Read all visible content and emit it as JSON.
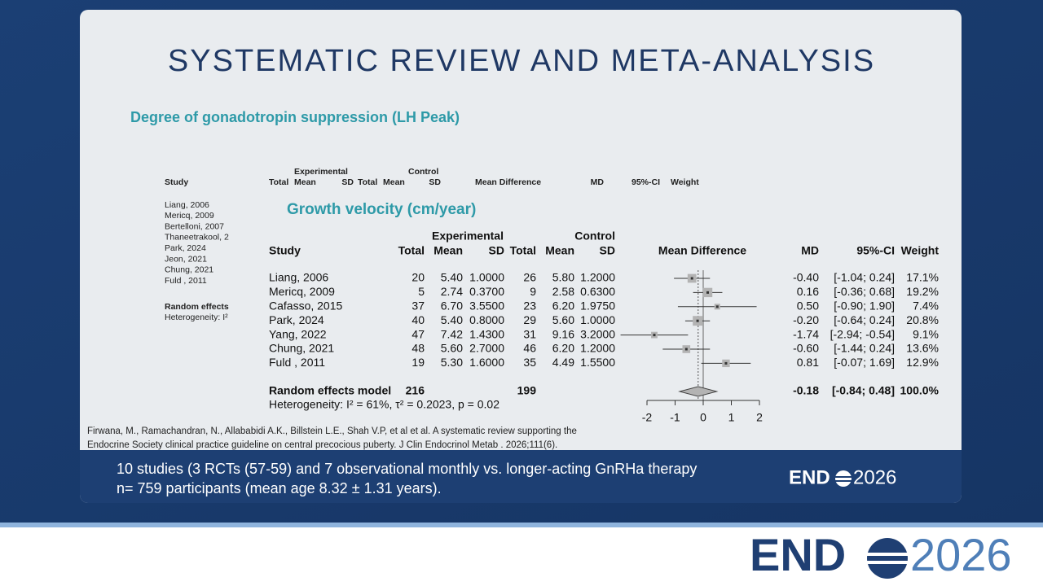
{
  "slide": {
    "title": "SYSTEMATIC REVIEW AND META-ANALYSIS",
    "lh_heading": "Degree of gonadotropin suppression (LH Peak)",
    "background_table": {
      "group_headers": [
        "Experimental",
        "Control"
      ],
      "headers": [
        "Study",
        "Total",
        "Mean",
        "SD",
        "Total",
        "Mean",
        "SD",
        "Mean Difference",
        "MD",
        "95%-CI",
        "Weight"
      ],
      "studies": [
        "Liang, 2006",
        "Mericq, 2009",
        "Bertelloni, 2007",
        "Thaneetrakool, 2",
        "Park, 2024",
        "Jeon, 2021",
        "Chung, 2021",
        "Fuld , 2011"
      ],
      "random_effects": "Random effects",
      "heterogeneity": "Heterogeneity: I²"
    },
    "forest": {
      "title": "Growth velocity (cm/year)",
      "group_headers": [
        "Experimental",
        "Control"
      ],
      "headers": [
        "Study",
        "Total",
        "Mean",
        "SD",
        "Total",
        "Mean",
        "SD",
        "Mean Difference",
        "MD",
        "95%-CI",
        "Weight"
      ],
      "studies": [
        {
          "study": "Liang, 2006",
          "exp_total": "20",
          "exp_mean": "5.40",
          "exp_sd": "1.0000",
          "ctl_total": "26",
          "ctl_mean": "5.80",
          "ctl_sd": "1.2000",
          "md": {
            "value": -0.4,
            "label": "-0.40"
          },
          "ci": "[-1.04; 0.24]",
          "ci_low": -1.04,
          "ci_high": 0.24,
          "weight": {
            "value": 17.1,
            "label": "17.1%"
          }
        },
        {
          "study": "Mericq, 2009",
          "exp_total": "5",
          "exp_mean": "2.74",
          "exp_sd": "0.3700",
          "ctl_total": "9",
          "ctl_mean": "2.58",
          "ctl_sd": "0.6300",
          "md": 0.16,
          "ci": "[-0.36; 0.68]",
          "ci_low": -0.36,
          "ci_high": 0.68,
          "weight": {
            "value": 19.2,
            "label": "19.2%"
          }
        },
        {
          "study": "Cafasso, 2015",
          "exp_total": "37",
          "exp_mean": "6.70",
          "exp_sd": "3.5500",
          "ctl_total": "23",
          "ctl_mean": "6.20",
          "ctl_sd": "1.9750",
          "md": {
            "value": 0.5,
            "label": "0.50"
          },
          "ci": "[-0.90; 1.90]",
          "ci_low": -0.9,
          "ci_high": 1.9,
          "weight": {
            "value": 7.4,
            "label": "7.4%"
          }
        },
        {
          "study": "Park, 2024",
          "exp_total": "40",
          "exp_mean": "5.40",
          "exp_sd": "0.8000",
          "ctl_total": "29",
          "ctl_mean": "5.60",
          "ctl_sd": "1.0000",
          "md": {
            "value": -0.2,
            "label": "-0.20"
          },
          "ci": "[-0.64; 0.24]",
          "ci_low": -0.64,
          "ci_high": 0.24,
          "weight": {
            "value": 20.8,
            "label": "20.8%"
          }
        },
        {
          "study": "Yang, 2022",
          "exp_total": "47",
          "exp_mean": "7.42",
          "exp_sd": "1.4300",
          "ctl_total": "31",
          "ctl_mean": "9.16",
          "ctl_sd": "3.2000",
          "md": -1.74,
          "ci": "[-2.94; -0.54]",
          "ci_low": -2.94,
          "ci_high": -0.54,
          "weight": {
            "value": 9.1,
            "label": "9.1%"
          }
        },
        {
          "study": "Chung, 2021",
          "exp_total": "48",
          "exp_mean": "5.60",
          "exp_sd": "2.7000",
          "ctl_total": "46",
          "ctl_mean": "6.20",
          "ctl_sd": "1.2000",
          "md": {
            "value": -0.6,
            "label": "-0.60"
          },
          "ci": "[-1.44; 0.24]",
          "ci_low": -1.44,
          "ci_high": 0.24,
          "weight": {
            "value": 13.6,
            "label": "13.6%"
          }
        },
        {
          "study": "Fuld , 2011",
          "exp_total": "19",
          "exp_mean": "5.30",
          "exp_sd": "1.6000",
          "ctl_total": "35",
          "ctl_mean": "4.49",
          "ctl_sd": "1.5500",
          "md": 0.81,
          "ci": "[-0.07; 1.69]",
          "ci_low": -0.07,
          "ci_high": 1.69,
          "weight": {
            "value": 12.9,
            "label": "12.9%"
          }
        }
      ],
      "summary": {
        "label": "Random effects model",
        "exp_total": "216",
        "ctl_total": "199",
        "md": -0.18,
        "ci": "[-0.84; 0.48]",
        "ci_low": -0.84,
        "ci_high": 0.48,
        "weight": {
          "value": 100,
          "label": "100.0%"
        }
      },
      "heterogeneity": "Heterogeneity: I² = 61%, τ² = 0.2023, p = 0.02",
      "xlim": [
        -2,
        2
      ],
      "xticks": [
        -2,
        -1,
        0,
        1,
        2
      ]
    },
    "citation": [
      "Firwana, M., Ramachandran, N., Allababidi A.K., Billstein L.E., Shah V.P, et al et al. A systematic review supporting the",
      "Endocrine Society clinical practice guideline on central precocious puberty. J Clin Endocrinol Metab . 2026;111(6)."
    ],
    "band": [
      "10 studies (3 RCTs (57-59) and 7 observational monthly vs. longer-acting GnRHa therapy",
      "n= 759 participants (mean age 8.32 ± 1.31 years)."
    ],
    "logo": {
      "left": "END",
      "right": "2026"
    }
  }
}
